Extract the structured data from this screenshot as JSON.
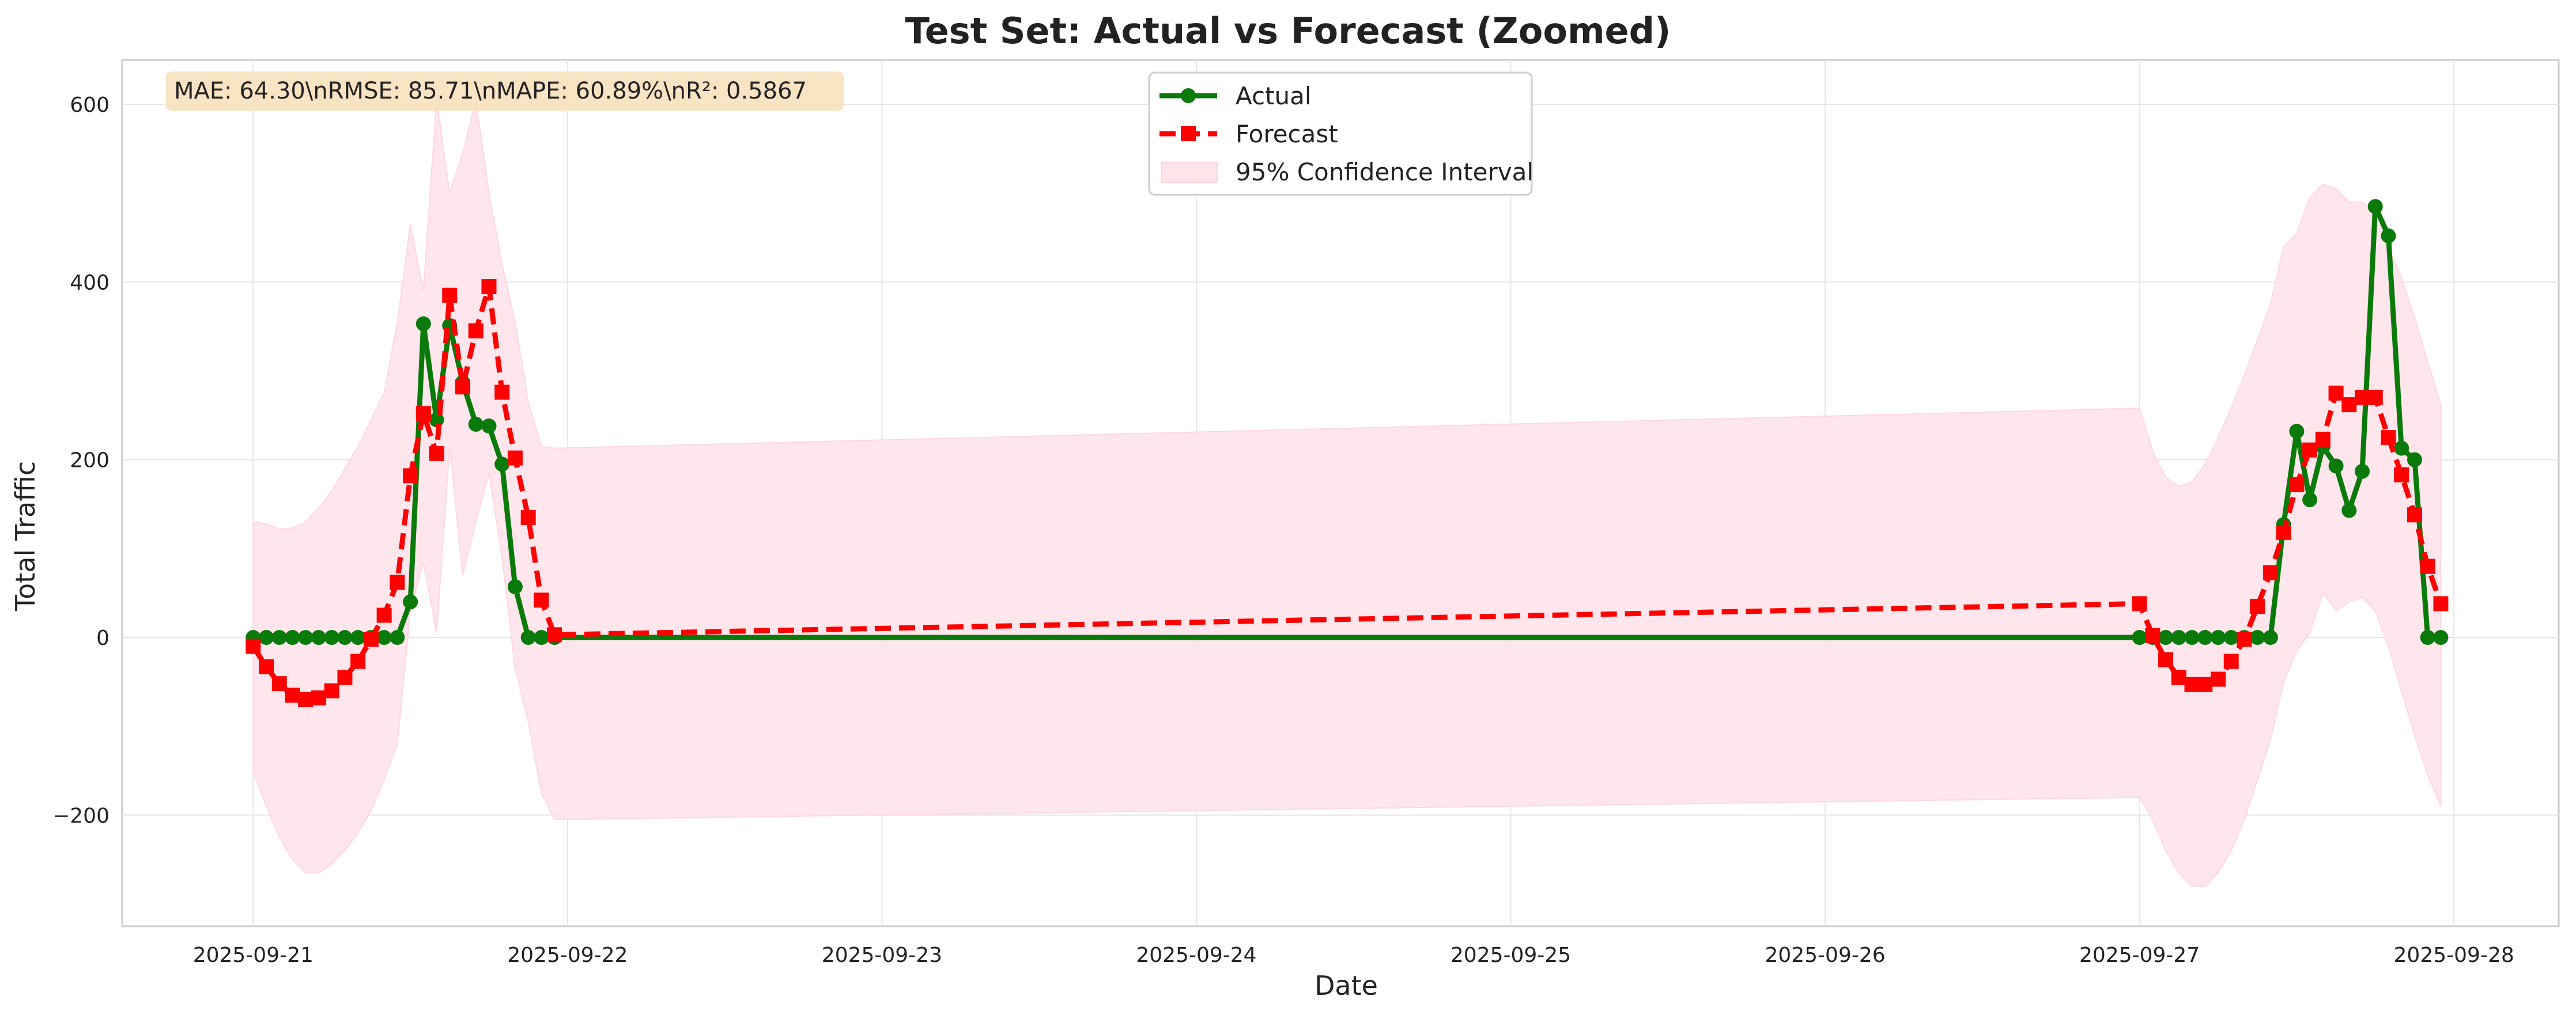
{
  "chart_data": {
    "type": "line",
    "title": "Test Set: Actual vs Forecast (Zoomed)",
    "xlabel": "Date",
    "ylabel": "Total Traffic",
    "ylim": [
      -325,
      650
    ],
    "yticks": [
      -200,
      0,
      200,
      400,
      600
    ],
    "ytick_labels": [
      "−200",
      "0",
      "200",
      "400",
      "600"
    ],
    "xlim": [
      "2025-09-20 14:00",
      "2025-09-28 08:00"
    ],
    "xticks": [
      "2025-09-21",
      "2025-09-22",
      "2025-09-23",
      "2025-09-24",
      "2025-09-25",
      "2025-09-26",
      "2025-09-27",
      "2025-09-28"
    ],
    "grid": true,
    "legend_position": "top-center",
    "metrics_text": "MAE: 64.30\\nRMSE: 85.71\\nMAPE: 60.89%\\nR²: 0.5867",
    "colors": {
      "actual": "#0a7a0a",
      "forecast": "#ff0000",
      "ci_fill": "#ffe4ea",
      "metrics_box": "#f7e0bc",
      "grid": "#e6e6e6",
      "spine": "#cccccc"
    },
    "series": [
      {
        "name": "Actual",
        "marker": "circle",
        "x": [
          "2025-09-21 00:00",
          "2025-09-21 01:00",
          "2025-09-21 02:00",
          "2025-09-21 03:00",
          "2025-09-21 04:00",
          "2025-09-21 05:00",
          "2025-09-21 06:00",
          "2025-09-21 07:00",
          "2025-09-21 08:00",
          "2025-09-21 09:00",
          "2025-09-21 10:00",
          "2025-09-21 11:00",
          "2025-09-21 12:00",
          "2025-09-21 13:00",
          "2025-09-21 14:00",
          "2025-09-21 15:00",
          "2025-09-21 16:00",
          "2025-09-21 17:00",
          "2025-09-21 18:00",
          "2025-09-21 19:00",
          "2025-09-21 20:00",
          "2025-09-21 21:00",
          "2025-09-21 22:00",
          "2025-09-21 23:00",
          "2025-09-27 00:00",
          "2025-09-27 01:00",
          "2025-09-27 02:00",
          "2025-09-27 03:00",
          "2025-09-27 04:00",
          "2025-09-27 05:00",
          "2025-09-27 06:00",
          "2025-09-27 07:00",
          "2025-09-27 08:00",
          "2025-09-27 09:00",
          "2025-09-27 10:00",
          "2025-09-27 11:00",
          "2025-09-27 12:00",
          "2025-09-27 13:00",
          "2025-09-27 14:00",
          "2025-09-27 15:00",
          "2025-09-27 16:00",
          "2025-09-27 17:00",
          "2025-09-27 18:00",
          "2025-09-27 19:00",
          "2025-09-27 20:00",
          "2025-09-27 21:00",
          "2025-09-27 22:00",
          "2025-09-27 23:00"
        ],
        "values": [
          0,
          0,
          0,
          0,
          0,
          0,
          0,
          0,
          0,
          0,
          0,
          0,
          40,
          353,
          245,
          351,
          287,
          240,
          238,
          195,
          57,
          0,
          0,
          0,
          0,
          0,
          0,
          0,
          0,
          0,
          0,
          0,
          0,
          0,
          0,
          127,
          232,
          155,
          215,
          193,
          143,
          187,
          485,
          452,
          213,
          200,
          0,
          0
        ]
      },
      {
        "name": "Forecast",
        "marker": "square",
        "x": [
          "2025-09-21 00:00",
          "2025-09-21 01:00",
          "2025-09-21 02:00",
          "2025-09-21 03:00",
          "2025-09-21 04:00",
          "2025-09-21 05:00",
          "2025-09-21 06:00",
          "2025-09-21 07:00",
          "2025-09-21 08:00",
          "2025-09-21 09:00",
          "2025-09-21 10:00",
          "2025-09-21 11:00",
          "2025-09-21 12:00",
          "2025-09-21 13:00",
          "2025-09-21 14:00",
          "2025-09-21 15:00",
          "2025-09-21 16:00",
          "2025-09-21 17:00",
          "2025-09-21 18:00",
          "2025-09-21 19:00",
          "2025-09-21 20:00",
          "2025-09-21 21:00",
          "2025-09-21 22:00",
          "2025-09-21 23:00",
          "2025-09-27 00:00",
          "2025-09-27 01:00",
          "2025-09-27 02:00",
          "2025-09-27 03:00",
          "2025-09-27 04:00",
          "2025-09-27 05:00",
          "2025-09-27 06:00",
          "2025-09-27 07:00",
          "2025-09-27 08:00",
          "2025-09-27 09:00",
          "2025-09-27 10:00",
          "2025-09-27 11:00",
          "2025-09-27 12:00",
          "2025-09-27 13:00",
          "2025-09-27 14:00",
          "2025-09-27 15:00",
          "2025-09-27 16:00",
          "2025-09-27 17:00",
          "2025-09-27 18:00",
          "2025-09-27 19:00",
          "2025-09-27 20:00",
          "2025-09-27 21:00",
          "2025-09-27 22:00",
          "2025-09-27 23:00"
        ],
        "values": [
          -10,
          -33,
          -52,
          -65,
          -70,
          -68,
          -60,
          -45,
          -27,
          -2,
          25,
          62,
          182,
          252,
          207,
          385,
          282,
          345,
          395,
          276,
          202,
          135,
          42,
          3,
          38,
          2,
          -25,
          -45,
          -53,
          -53,
          -47,
          -27,
          -2,
          35,
          73,
          118,
          172,
          211,
          223,
          275,
          262,
          270,
          270,
          225,
          183,
          138,
          80,
          38
        ]
      }
    ],
    "confidence_interval": {
      "name": "95% Confidence Interval",
      "x": [
        "2025-09-21 00:00",
        "2025-09-21 01:00",
        "2025-09-21 02:00",
        "2025-09-21 03:00",
        "2025-09-21 04:00",
        "2025-09-21 05:00",
        "2025-09-21 06:00",
        "2025-09-21 07:00",
        "2025-09-21 08:00",
        "2025-09-21 09:00",
        "2025-09-21 10:00",
        "2025-09-21 11:00",
        "2025-09-21 12:00",
        "2025-09-21 13:00",
        "2025-09-21 14:00",
        "2025-09-21 15:00",
        "2025-09-21 16:00",
        "2025-09-21 17:00",
        "2025-09-21 18:00",
        "2025-09-21 19:00",
        "2025-09-21 20:00",
        "2025-09-21 21:00",
        "2025-09-21 22:00",
        "2025-09-21 23:00",
        "2025-09-27 00:00",
        "2025-09-27 01:00",
        "2025-09-27 02:00",
        "2025-09-27 03:00",
        "2025-09-27 04:00",
        "2025-09-27 05:00",
        "2025-09-27 06:00",
        "2025-09-27 07:00",
        "2025-09-27 08:00",
        "2025-09-27 09:00",
        "2025-09-27 10:00",
        "2025-09-27 11:00",
        "2025-09-27 12:00",
        "2025-09-27 13:00",
        "2025-09-27 14:00",
        "2025-09-27 15:00",
        "2025-09-27 16:00",
        "2025-09-27 17:00",
        "2025-09-27 18:00",
        "2025-09-27 19:00",
        "2025-09-27 20:00",
        "2025-09-27 21:00",
        "2025-09-27 22:00",
        "2025-09-27 23:00"
      ],
      "upper": [
        130,
        128,
        122,
        123,
        130,
        145,
        165,
        190,
        215,
        245,
        275,
        355,
        465,
        390,
        605,
        500,
        545,
        605,
        500,
        420,
        355,
        265,
        215,
        213,
        258,
        210,
        180,
        170,
        175,
        195,
        225,
        258,
        295,
        335,
        375,
        440,
        455,
        495,
        510,
        505,
        490,
        490,
        480,
        440,
        405,
        360,
        310,
        262
      ],
      "lower": [
        -150,
        -190,
        -225,
        -250,
        -265,
        -265,
        -255,
        -240,
        -220,
        -195,
        -160,
        -120,
        30,
        85,
        5,
        215,
        70,
        130,
        185,
        90,
        -35,
        -95,
        -175,
        -205,
        -180,
        -205,
        -240,
        -265,
        -280,
        -280,
        -265,
        -240,
        -205,
        -160,
        -115,
        -50,
        -15,
        5,
        50,
        30,
        40,
        45,
        30,
        -10,
        -60,
        -110,
        -155,
        -190
      ]
    }
  }
}
